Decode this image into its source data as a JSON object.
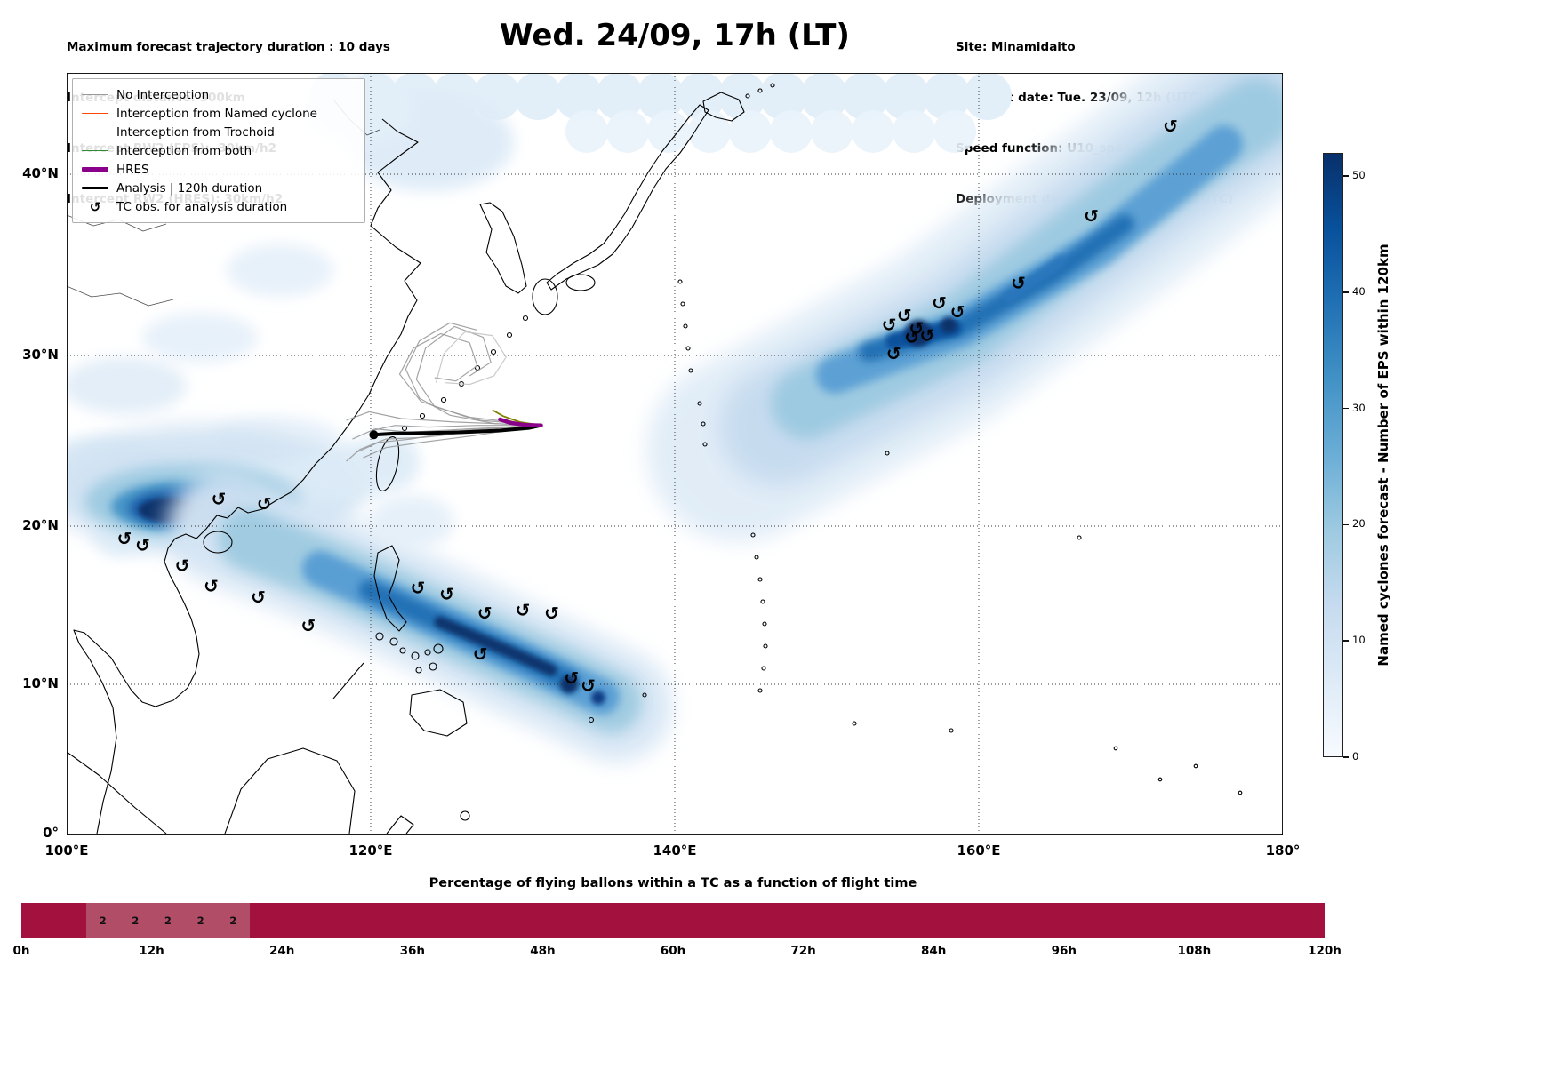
{
  "header": {
    "left_lines": [
      "Maximum forecast trajectory duration : 10 days",
      "Intercept distance: 300km",
      "Intercept RW2 (EPS):  30km/h2",
      "Intercept RW2 (HRES): 30km/h2"
    ],
    "title": "Wed. 24/09, 17h (LT)",
    "right_lines": [
      "Site: Minamidaito",
      "Forecast date: Tue. 23/09, 12h (UTC)",
      "Speed function: U10_speed_Helikite_4",
      "Deployment date: Wed. 24/09, 08h (UTC)"
    ]
  },
  "legend": {
    "items": [
      {
        "label": "No Interception",
        "color": "#9a9a9a",
        "lw": 1.5
      },
      {
        "label": "Interception from Named cyclone",
        "color": "#ff4500",
        "lw": 1.5
      },
      {
        "label": "Interception from Trochoid",
        "color": "#808000",
        "lw": 1.5
      },
      {
        "label": "Interception from both",
        "color": "#2e8b2e",
        "lw": 1.5
      },
      {
        "label": "HRES",
        "color": "#8b008b",
        "lw": 4.5
      },
      {
        "label": "Analysis | 120h duration",
        "color": "#000000",
        "lw": 3.5
      },
      {
        "label": "TC obs. for analysis duration",
        "symbol": "↺"
      }
    ]
  },
  "colorbar": {
    "label": "Named cyclones forecast - Number of EPS within 120km",
    "ticks": [
      0,
      10,
      20,
      30,
      40,
      50
    ],
    "max": 52,
    "gradient": [
      "#f7fbff",
      "#deebf7",
      "#c6dbef",
      "#9ecae1",
      "#6baed6",
      "#4292c6",
      "#2171b5",
      "#08519c",
      "#08306b"
    ]
  },
  "map": {
    "tc_symbol": "↺",
    "xticks": [
      {
        "v": 100,
        "label": "100°E"
      },
      {
        "v": 120,
        "label": "120°E"
      },
      {
        "v": 140,
        "label": "140°E"
      },
      {
        "v": 160,
        "label": "160°E"
      },
      {
        "v": 180,
        "label": "180°"
      }
    ],
    "yticks": [
      {
        "v": 0,
        "label": "0°"
      },
      {
        "v": 10,
        "label": "10°N"
      },
      {
        "v": 20,
        "label": "20°N"
      },
      {
        "v": 30,
        "label": "30°N"
      },
      {
        "v": 40,
        "label": "40°N"
      }
    ],
    "grid_lons": [
      120,
      140,
      160
    ],
    "grid_lats": [
      10,
      20,
      30,
      40
    ]
  },
  "chart_data": {
    "type": "heatmap",
    "title": "Wed. 24/09, 17h (LT)",
    "xlim": [
      100,
      180
    ],
    "ylim": [
      0,
      45.5
    ],
    "grid": true,
    "colorbar_label": "Named cyclones forecast - Number of EPS within 120km",
    "colorbar_range": [
      0,
      52
    ],
    "density_maxima": [
      {
        "lon": 155.5,
        "lat": 31.5,
        "value": 50
      },
      {
        "lon": 107.0,
        "lat": 21.0,
        "value": 45
      },
      {
        "lon": 127.0,
        "lat": 12.5,
        "value": 40
      }
    ],
    "deployment_point": [
      131.2,
      25.9
    ],
    "tc_obs": [
      [
        103.8,
        19.2
      ],
      [
        105.0,
        18.8
      ],
      [
        107.6,
        17.5
      ],
      [
        109.5,
        16.2
      ],
      [
        112.6,
        15.5
      ],
      [
        115.9,
        13.7
      ],
      [
        110.0,
        21.6
      ],
      [
        113.0,
        21.3
      ],
      [
        123.1,
        16.1
      ],
      [
        125.0,
        15.7
      ],
      [
        127.5,
        14.5
      ],
      [
        130.0,
        14.7
      ],
      [
        131.9,
        14.5
      ],
      [
        127.2,
        11.9
      ],
      [
        133.2,
        10.4
      ],
      [
        134.3,
        9.9
      ],
      [
        154.1,
        31.7
      ],
      [
        155.1,
        32.2
      ],
      [
        155.9,
        31.5
      ],
      [
        156.6,
        31.1
      ],
      [
        155.6,
        31.0
      ],
      [
        157.4,
        32.9
      ],
      [
        158.6,
        32.4
      ],
      [
        154.4,
        30.1
      ],
      [
        162.6,
        34.0
      ],
      [
        167.4,
        37.7
      ],
      [
        172.6,
        42.6
      ]
    ],
    "trajectories": {
      "analysis": [
        [
          120.2,
          25.35
        ],
        [
          121.5,
          25.42
        ],
        [
          123.5,
          25.45
        ],
        [
          126.0,
          25.5
        ],
        [
          128.5,
          25.6
        ],
        [
          130.4,
          25.75
        ],
        [
          131.2,
          25.9
        ]
      ],
      "hres": [
        [
          131.2,
          25.9
        ],
        [
          130.2,
          25.92
        ],
        [
          129.2,
          26.05
        ],
        [
          128.5,
          26.25
        ]
      ],
      "trochoid": [
        [
          [
            131.2,
            25.9
          ],
          [
            129.8,
            26.1
          ],
          [
            128.7,
            26.45
          ],
          [
            128.0,
            26.8
          ]
        ],
        [
          [
            131.2,
            25.9
          ],
          [
            130.0,
            25.98
          ],
          [
            128.9,
            26.2
          ]
        ]
      ],
      "named": [],
      "both": [],
      "no_interception": [
        [
          [
            131.2,
            25.9
          ],
          [
            127.5,
            25.6
          ],
          [
            123.5,
            25.2
          ],
          [
            121.0,
            25.1
          ],
          [
            119.3,
            24.5
          ],
          [
            118.4,
            23.8
          ]
        ],
        [
          [
            131.2,
            25.9
          ],
          [
            126.5,
            25.7
          ],
          [
            122.5,
            25.5
          ],
          [
            120.3,
            25.7
          ],
          [
            118.8,
            25.1
          ]
        ],
        [
          [
            131.2,
            25.9
          ],
          [
            125.5,
            26.1
          ],
          [
            122.0,
            26.3
          ],
          [
            119.9,
            26.7
          ],
          [
            118.4,
            26.2
          ]
        ],
        [
          [
            131.2,
            25.9
          ],
          [
            126.3,
            26.4
          ],
          [
            123.3,
            27.3
          ],
          [
            121.9,
            28.9
          ],
          [
            122.8,
            30.4
          ],
          [
            124.6,
            31.2
          ],
          [
            126.5,
            30.7
          ],
          [
            127.0,
            29.4
          ],
          [
            125.6,
            28.5
          ],
          [
            124.2,
            28.7
          ]
        ],
        [
          [
            131.2,
            25.9
          ],
          [
            127.2,
            26.2
          ],
          [
            124.2,
            27.0
          ],
          [
            123.0,
            28.6
          ],
          [
            123.6,
            30.4
          ],
          [
            125.5,
            31.6
          ],
          [
            127.4,
            31.0
          ],
          [
            127.9,
            29.6
          ],
          [
            126.5,
            28.8
          ]
        ],
        [
          [
            131.2,
            25.9
          ],
          [
            128.2,
            26.0
          ],
          [
            125.2,
            26.5
          ],
          [
            123.2,
            27.5
          ],
          [
            122.3,
            29.2
          ],
          [
            123.2,
            30.8
          ],
          [
            125.2,
            31.8
          ],
          [
            127.0,
            31.4
          ]
        ],
        [
          [
            131.2,
            25.9
          ],
          [
            126.8,
            25.3
          ],
          [
            123.3,
            24.9
          ],
          [
            121.0,
            24.6
          ],
          [
            119.5,
            24.0
          ]
        ],
        [
          [
            131.2,
            25.9
          ],
          [
            126.0,
            25.6
          ],
          [
            122.6,
            25.1
          ],
          [
            120.5,
            24.9
          ],
          [
            119.0,
            24.3
          ]
        ],
        [
          [
            124.3,
            28.4
          ],
          [
            124.8,
            30.1
          ],
          [
            126.2,
            31.3
          ],
          [
            128.0,
            31.1
          ],
          [
            128.9,
            29.9
          ],
          [
            128.1,
            28.8
          ],
          [
            126.5,
            28.3
          ],
          [
            124.9,
            28.4
          ]
        ],
        [
          [
            131.2,
            25.9
          ],
          [
            127.0,
            25.9
          ],
          [
            123.8,
            25.8
          ],
          [
            121.6,
            25.9
          ],
          [
            120.1,
            25.6
          ]
        ]
      ]
    },
    "flight_bar": {
      "type": "bar",
      "title": "Percentage of flying ballons within a TC as a function of flight time",
      "range_hours": [
        0,
        120
      ],
      "bar_color": "#a3123f",
      "cell_color": "#b24d68",
      "cells": [
        {
          "from": 6,
          "to": 9,
          "value": "2"
        },
        {
          "from": 9,
          "to": 12,
          "value": "2"
        },
        {
          "from": 12,
          "to": 15,
          "value": "2"
        },
        {
          "from": 15,
          "to": 18,
          "value": "2"
        },
        {
          "from": 18,
          "to": 21,
          "value": "2"
        }
      ],
      "ticks": [
        {
          "v": 0,
          "label": "0h"
        },
        {
          "v": 12,
          "label": "12h"
        },
        {
          "v": 24,
          "label": "24h"
        },
        {
          "v": 36,
          "label": "36h"
        },
        {
          "v": 48,
          "label": "48h"
        },
        {
          "v": 60,
          "label": "60h"
        },
        {
          "v": 72,
          "label": "72h"
        },
        {
          "v": 84,
          "label": "84h"
        },
        {
          "v": 96,
          "label": "96h"
        },
        {
          "v": 108,
          "label": "108h"
        },
        {
          "v": 120,
          "label": "120h"
        }
      ]
    }
  }
}
